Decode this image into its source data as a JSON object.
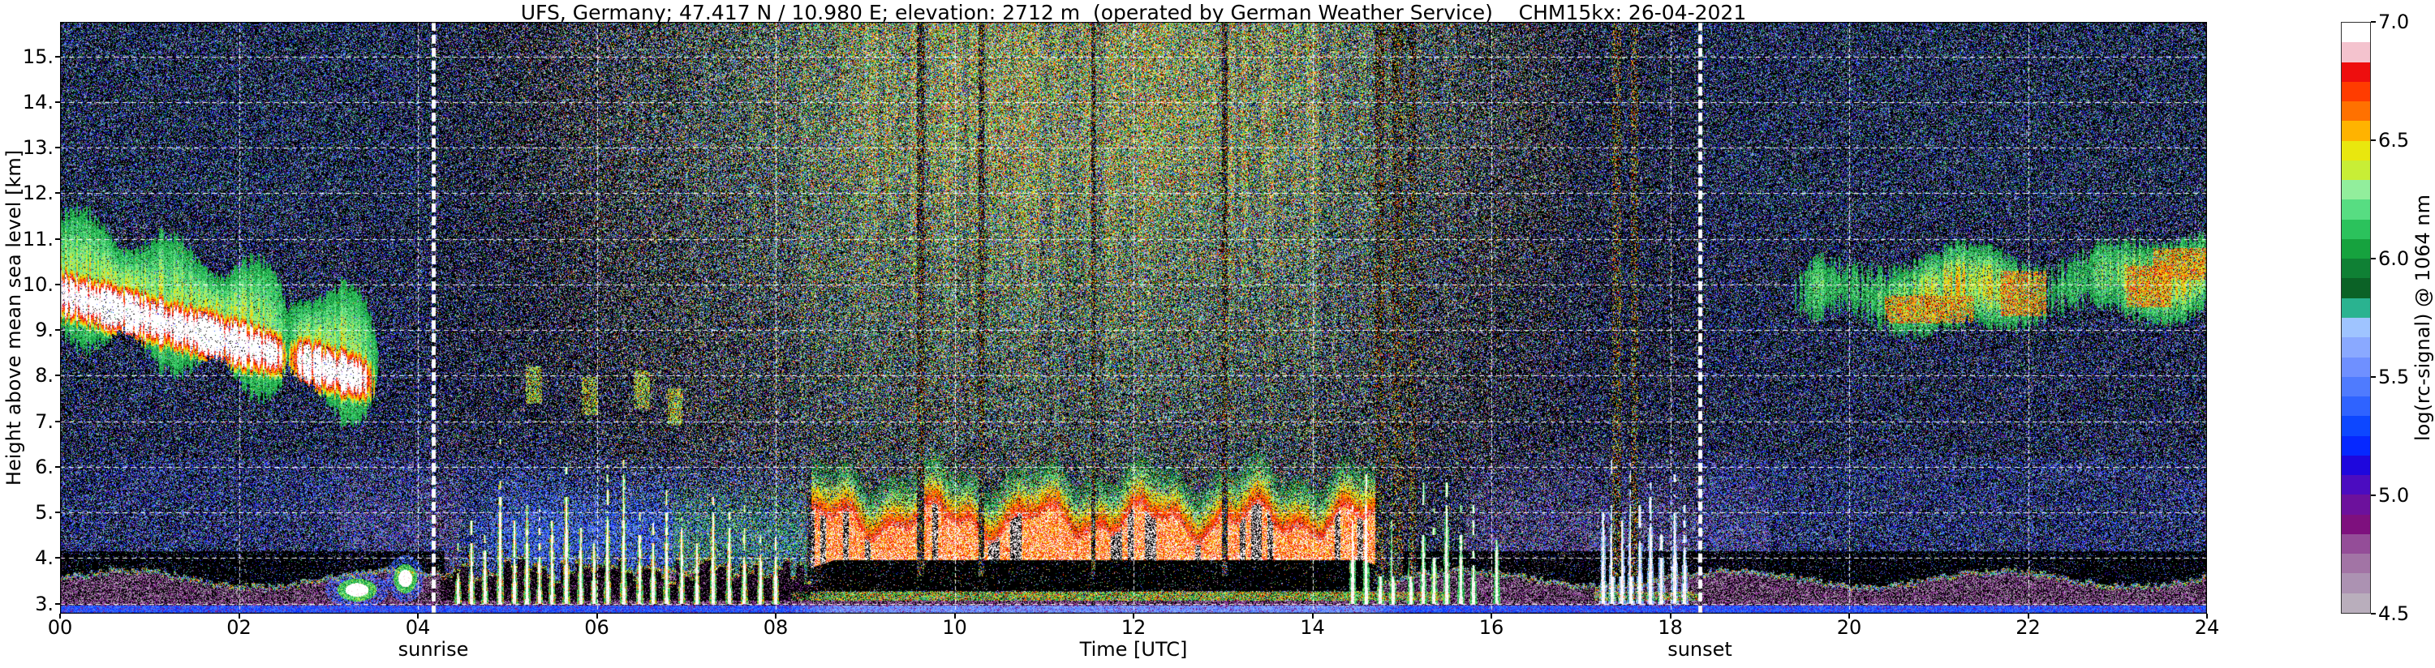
{
  "chart_data": {
    "type": "heatmap",
    "title": "UFS, Germany; 47.417 N / 10.980 E; elevation: 2712 m  (operated by German Weather Service)    CHM15kx: 26-04-2021",
    "station": {
      "name": "UFS, Germany",
      "latitude": "47.417 N",
      "longitude": "10.980 E",
      "elevation_m": 2712,
      "operator": "German Weather Service",
      "instrument": "CHM15kx",
      "date": "26-04-2021"
    },
    "xlabel": "Time [UTC]",
    "ylabel": "Height above mean sea level [km]",
    "xlim": [
      0,
      24
    ],
    "ylim_km": [
      2.78,
      15.76
    ],
    "x_ticks": [
      {
        "label": "00",
        "hour": 0
      },
      {
        "label": "02",
        "hour": 2
      },
      {
        "label": "04",
        "hour": 4
      },
      {
        "label": "06",
        "hour": 6
      },
      {
        "label": "08",
        "hour": 8
      },
      {
        "label": "10",
        "hour": 10
      },
      {
        "label": "12",
        "hour": 12
      },
      {
        "label": "14",
        "hour": 14
      },
      {
        "label": "16",
        "hour": 16
      },
      {
        "label": "18",
        "hour": 18
      },
      {
        "label": "20",
        "hour": 20
      },
      {
        "label": "22",
        "hour": 22
      },
      {
        "label": "24",
        "hour": 24
      }
    ],
    "y_ticks": [
      {
        "label": "15.",
        "km": 15
      },
      {
        "label": "14.",
        "km": 14
      },
      {
        "label": "13.",
        "km": 13
      },
      {
        "label": "12.",
        "km": 12
      },
      {
        "label": "11.",
        "km": 11
      },
      {
        "label": "10.",
        "km": 10
      },
      {
        "label": "9.",
        "km": 9
      },
      {
        "label": "8.",
        "km": 8
      },
      {
        "label": "7.",
        "km": 7
      },
      {
        "label": "6.",
        "km": 6
      },
      {
        "label": "5.",
        "km": 5
      },
      {
        "label": "4.",
        "km": 4
      },
      {
        "label": "3.",
        "km": 3
      }
    ],
    "grid": {
      "color": "#ffffff",
      "style": "dashed-dotted",
      "x_every_hours": 2,
      "y_every_km": 1
    },
    "sun_events": [
      {
        "label": "sunrise",
        "time_utc": 4.17
      },
      {
        "label": "sunset",
        "time_utc": 18.33
      }
    ],
    "colorbar": {
      "label": "log(rc-signal) @ 1064 nm",
      "vmin": 4.5,
      "vmax": 7.0,
      "under_color": "#000000",
      "ticks": [
        {
          "label": "7.0",
          "value": 7.0
        },
        {
          "label": "6.5",
          "value": 6.5
        },
        {
          "label": "6.0",
          "value": 6.0
        },
        {
          "label": "5.5",
          "value": 5.5
        },
        {
          "label": "5.0",
          "value": 5.0
        },
        {
          "label": "4.5",
          "value": 4.5
        }
      ],
      "colors_bottom_to_top": [
        "#b9aebc",
        "#ac92b2",
        "#a274a5",
        "#944d98",
        "#7e107e",
        "#6c119c",
        "#4b0cc0",
        "#1e07dd",
        "#0628ff",
        "#0d47ff",
        "#2f63ff",
        "#4f7bfe",
        "#6f90ff",
        "#8aa9ff",
        "#9fc4ff",
        "#2ab390",
        "#0b6226",
        "#0f8034",
        "#16a23e",
        "#2bc25c",
        "#57dd82",
        "#92ee9c",
        "#c8ee36",
        "#e9e70e",
        "#ffb300",
        "#ff7100",
        "#ff3c00",
        "#ee0e0e",
        "#f4c3ce",
        "#ffffff"
      ]
    },
    "features": {
      "solar_background_noise": {
        "time_range": [
          4.17,
          18.33
        ],
        "peak_hours": [
          9,
          15
        ],
        "description": "salt-and-pepper solar noise, brightest aloft near midday"
      },
      "cirrus_cloud_left": {
        "time_range": [
          0,
          3.6
        ],
        "core_height_km_start": 9.8,
        "core_descent_km_per_h": 0.55,
        "top_km": 11.8,
        "description": "strong cirrus, red/white core, green fringe, fall streaks"
      },
      "cloud_layer_right": {
        "time_range": [
          19.2,
          24
        ],
        "center_km": 9.9,
        "description": "patchy green/yellow layer with orange cores",
        "orange_cores": [
          [
            20.9,
            9.45,
            0.5,
            0.3
          ],
          [
            21.95,
            9.8,
            0.25,
            0.5
          ],
          [
            23.35,
            9.95,
            0.25,
            0.45
          ],
          [
            23.7,
            10.45,
            0.3,
            0.35
          ]
        ]
      },
      "boundary_layer": {
        "surface_purple_strip_top_km": 2.8,
        "blue_band_km": [
          2.8,
          2.96
        ],
        "night_top_km": 3.45,
        "day_black_gap_km": [
          3.28,
          3.95
        ],
        "day_red_layer_km": [
          3.95,
          4.9
        ],
        "red_layer_hours": [
          8.4,
          14.8
        ]
      },
      "morning_plumes": {
        "time_range": [
          4.3,
          8.2
        ],
        "spikes": [
          [
            4.45,
            4.3
          ],
          [
            4.6,
            4.8
          ],
          [
            4.75,
            4.5
          ],
          [
            4.92,
            6.2
          ],
          [
            5.08,
            5.0
          ],
          [
            5.22,
            5.5
          ],
          [
            5.36,
            4.8
          ],
          [
            5.5,
            5.3
          ],
          [
            5.66,
            6.6
          ],
          [
            5.82,
            5.1
          ],
          [
            5.97,
            4.7
          ],
          [
            6.12,
            5.8
          ],
          [
            6.3,
            6.1
          ],
          [
            6.48,
            5.2
          ],
          [
            6.63,
            4.8
          ],
          [
            6.78,
            5.5
          ],
          [
            6.95,
            5.0
          ],
          [
            7.12,
            4.7
          ],
          [
            7.3,
            5.7
          ],
          [
            7.48,
            5.1
          ],
          [
            7.65,
            4.8
          ],
          [
            7.83,
            4.5
          ],
          [
            8.0,
            4.6
          ]
        ]
      },
      "afternoon_plumes": {
        "time_range": [
          14.4,
          16.1
        ],
        "spikes": [
          [
            14.45,
            5.9
          ],
          [
            14.6,
            6.1
          ],
          [
            14.76,
            5.6
          ],
          [
            14.9,
            5.8
          ],
          [
            15.1,
            5.0
          ],
          [
            15.24,
            5.4
          ],
          [
            15.36,
            4.8
          ],
          [
            15.5,
            5.9
          ],
          [
            15.66,
            5.2
          ],
          [
            15.8,
            4.9
          ],
          [
            16.06,
            4.5
          ]
        ]
      },
      "evening_streaks": {
        "time_range": [
          17.2,
          18.2
        ],
        "spikes": [
          [
            17.25,
            5.4
          ],
          [
            17.35,
            6.0
          ],
          [
            17.46,
            5.6
          ],
          [
            17.56,
            6.2
          ],
          [
            17.66,
            5.3
          ],
          [
            17.78,
            5.8
          ],
          [
            17.9,
            5.0
          ],
          [
            18.05,
            5.6
          ],
          [
            18.16,
            5.2
          ]
        ]
      },
      "attenuated_columns": {
        "list": [
          [
            9.62,
            0.04
          ],
          [
            10.3,
            0.03
          ],
          [
            11.55,
            0.025
          ],
          [
            13.02,
            0.035
          ],
          [
            14.75,
            0.05
          ],
          [
            14.95,
            0.06
          ],
          [
            15.12,
            0.04
          ],
          [
            17.4,
            0.05
          ],
          [
            17.6,
            0.04
          ]
        ]
      },
      "low_cloud_patches": {
        "list": [
          [
            3.32,
            3.3,
            0.22,
            0.25
          ],
          [
            3.86,
            3.55,
            0.13,
            0.32
          ]
        ]
      },
      "mid_level_patches": {
        "list": [
          [
            5.3,
            7.8
          ],
          [
            5.92,
            7.55
          ],
          [
            6.5,
            7.7
          ],
          [
            6.88,
            7.3
          ]
        ]
      }
    }
  }
}
